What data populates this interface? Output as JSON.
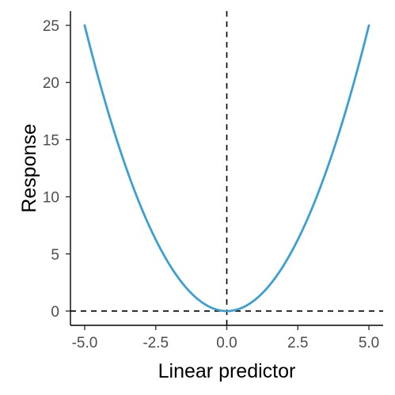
{
  "chart_data": {
    "type": "line",
    "title": "",
    "xlabel": "Linear predictor",
    "ylabel": "Response",
    "xlim": [
      -5.5,
      5.5
    ],
    "ylim": [
      -1.25,
      26.25
    ],
    "x_ticks": [
      -5,
      -2.5,
      0,
      2.5,
      5
    ],
    "x_tick_labels": [
      "-5.0",
      "-2.5",
      "0.0",
      "2.5",
      "5.0"
    ],
    "y_ticks": [
      0,
      5,
      10,
      15,
      20,
      25
    ],
    "y_tick_labels": [
      "0",
      "5",
      "10",
      "15",
      "20",
      "25"
    ],
    "grid": false,
    "series": [
      {
        "color": "#3d9fd2",
        "x": [
          -5,
          -4.5,
          -4,
          -3.5,
          -3,
          -2.5,
          -2,
          -1.5,
          -1,
          -0.5,
          0,
          0.5,
          1,
          1.5,
          2,
          2.5,
          3,
          3.5,
          4,
          4.5,
          5
        ],
        "y": [
          25,
          20.25,
          16,
          12.25,
          9,
          6.25,
          4,
          2.25,
          1,
          0.25,
          0,
          0.25,
          1,
          2.25,
          4,
          6.25,
          9,
          12.25,
          16,
          20.25,
          25
        ]
      }
    ],
    "reference_lines": [
      {
        "orientation": "vertical",
        "value": 0,
        "style": "dashed",
        "color": "#000000"
      },
      {
        "orientation": "horizontal",
        "value": 0,
        "style": "dashed",
        "color": "#000000"
      }
    ]
  }
}
